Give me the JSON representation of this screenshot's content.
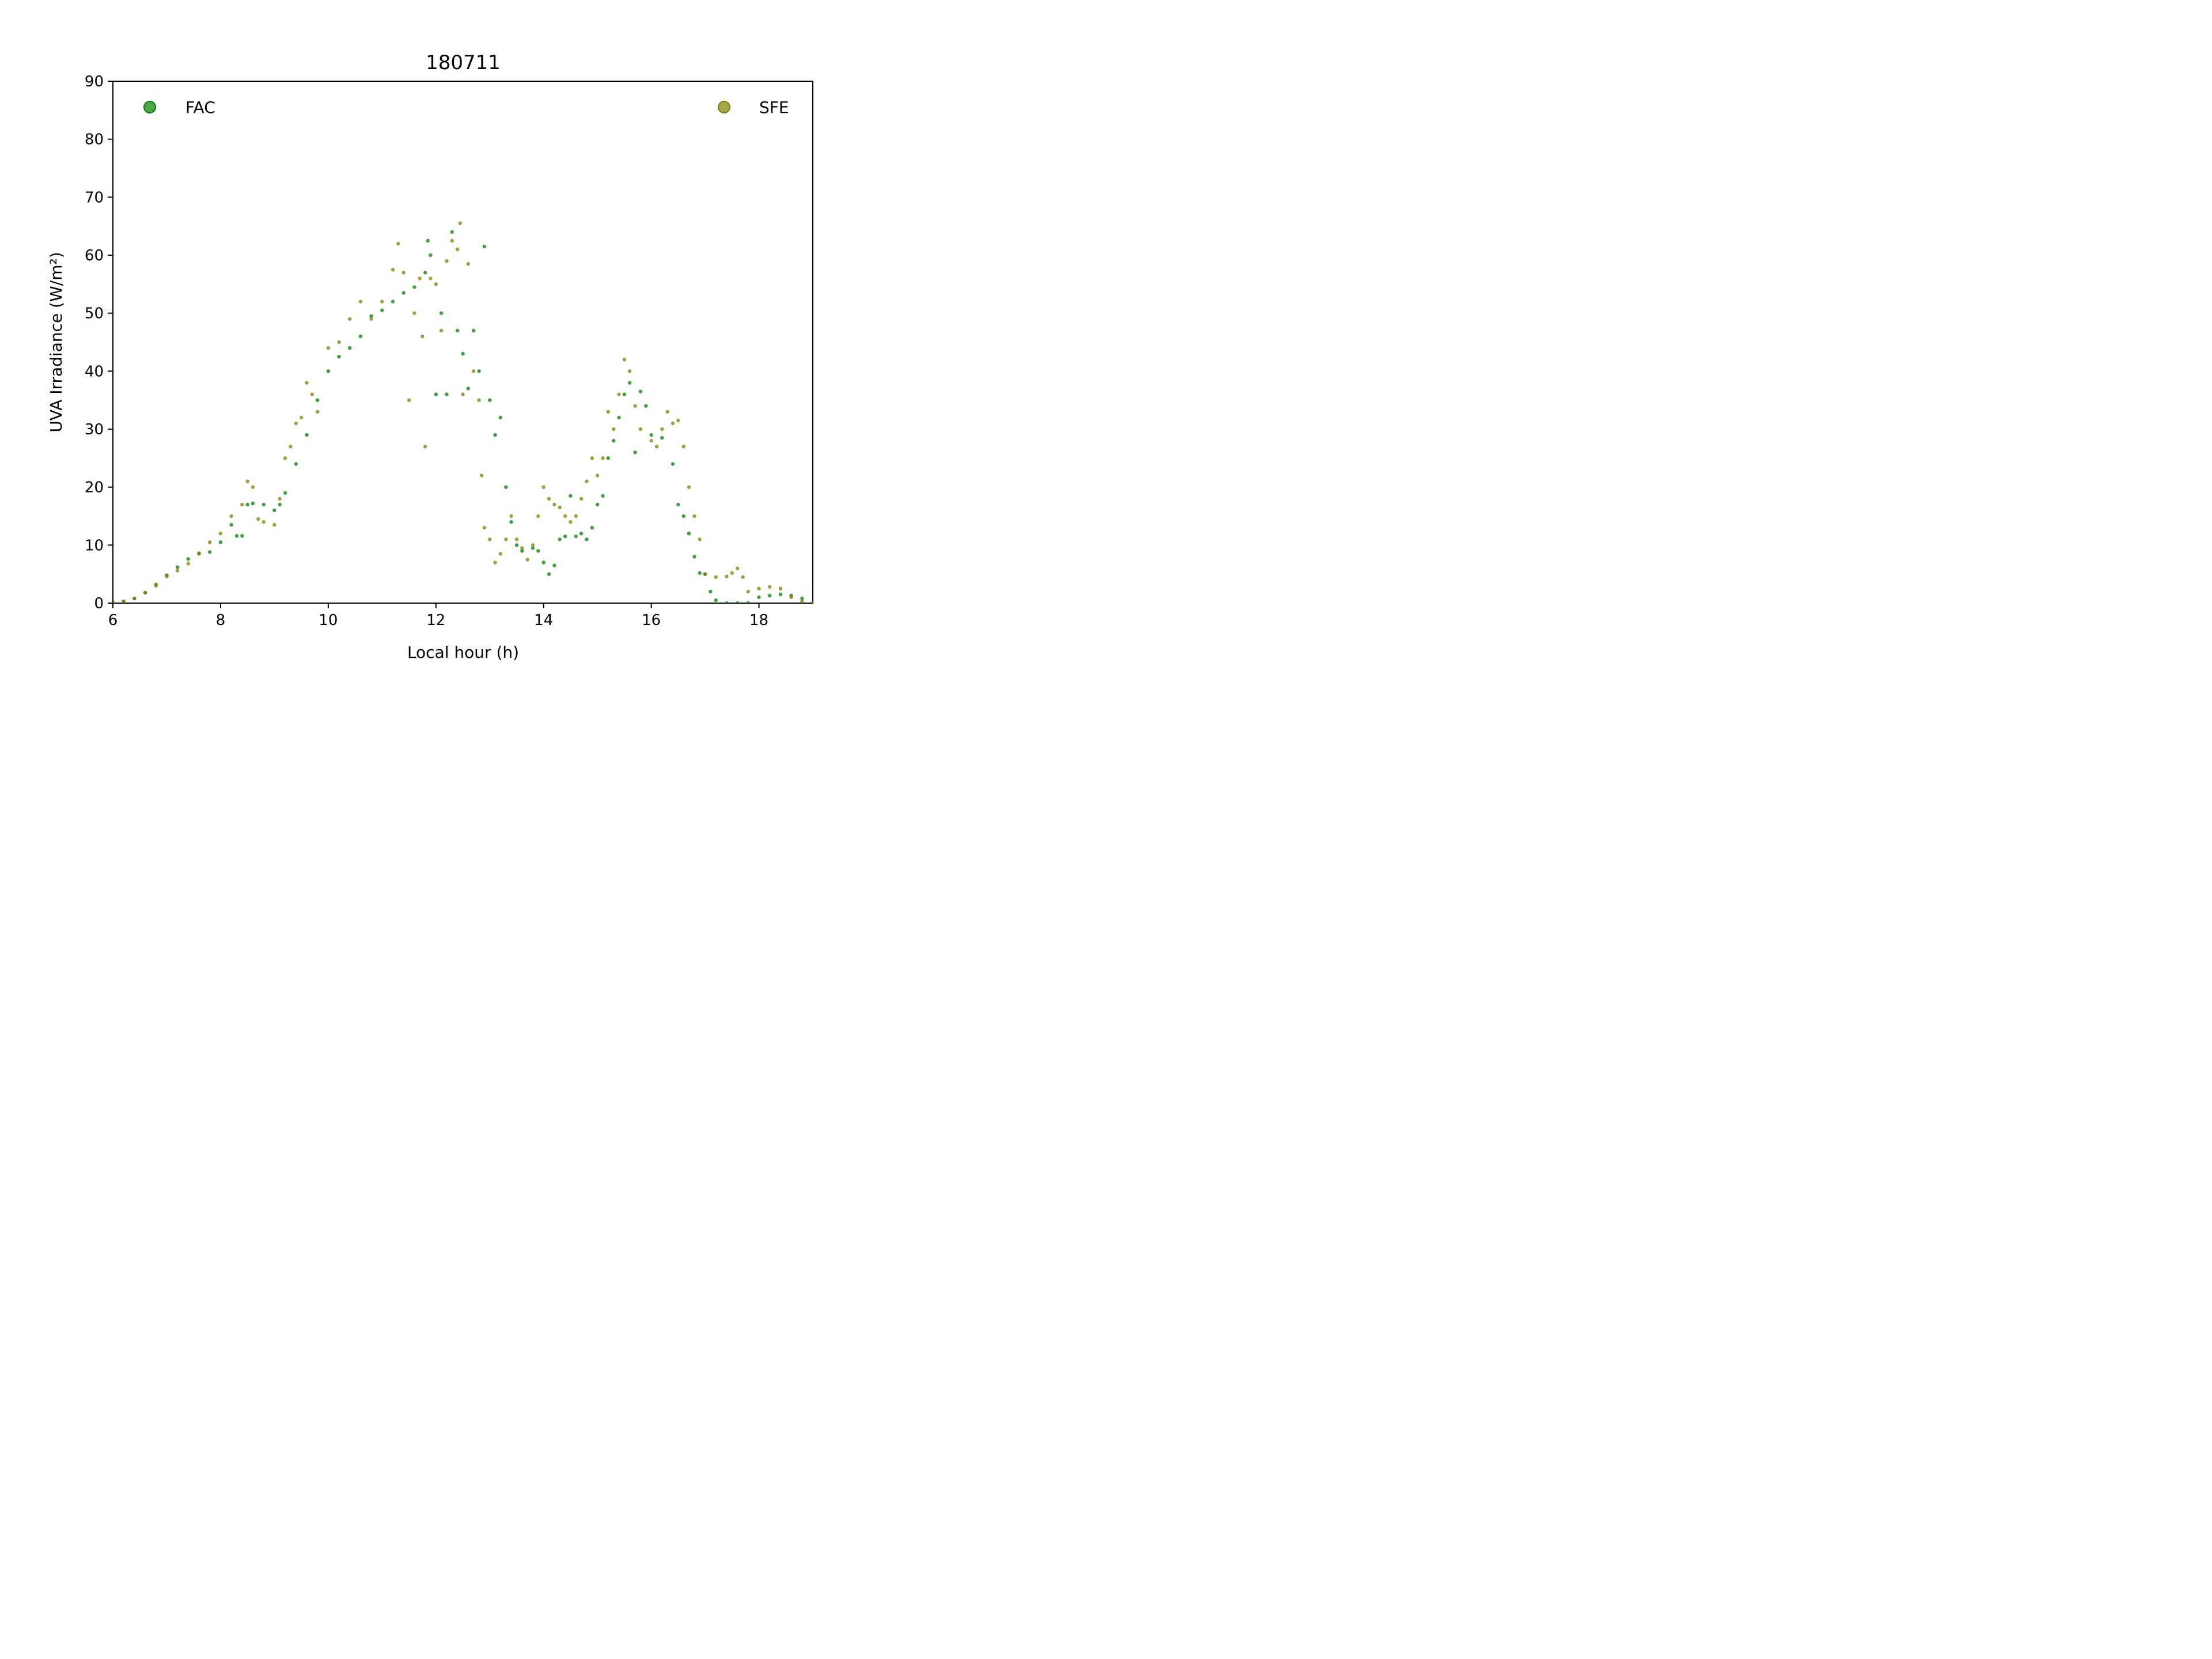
{
  "chart_data": {
    "type": "scatter",
    "title": "180711",
    "xlabel": "Local hour (h)",
    "ylabel": "UVA Irradiance (W/m²)",
    "xlim": [
      6,
      19
    ],
    "ylim": [
      0,
      90
    ],
    "xticks": [
      6,
      8,
      10,
      12,
      14,
      16,
      18
    ],
    "yticks": [
      0,
      10,
      20,
      30,
      40,
      50,
      60,
      70,
      80,
      90
    ],
    "grid": false,
    "legend": "top-left and top-right",
    "series": [
      {
        "name": "FAC",
        "color": "#008000",
        "points": [
          [
            6.0,
            0.1
          ],
          [
            6.2,
            0.3
          ],
          [
            6.4,
            0.8
          ],
          [
            6.6,
            1.8
          ],
          [
            6.8,
            3.2
          ],
          [
            7.0,
            4.8
          ],
          [
            7.2,
            6.2
          ],
          [
            7.4,
            7.6
          ],
          [
            7.6,
            8.6
          ],
          [
            7.8,
            8.8
          ],
          [
            8.0,
            10.5
          ],
          [
            8.2,
            13.5
          ],
          [
            8.3,
            11.6
          ],
          [
            8.4,
            11.6
          ],
          [
            8.5,
            17.0
          ],
          [
            8.6,
            17.2
          ],
          [
            8.8,
            17.0
          ],
          [
            9.0,
            16.0
          ],
          [
            9.1,
            17.0
          ],
          [
            9.2,
            19.0
          ],
          [
            9.4,
            24.0
          ],
          [
            9.6,
            29.0
          ],
          [
            9.8,
            35.0
          ],
          [
            10.0,
            40.0
          ],
          [
            10.2,
            42.5
          ],
          [
            10.4,
            44.0
          ],
          [
            10.6,
            46.0
          ],
          [
            10.8,
            49.5
          ],
          [
            11.0,
            50.5
          ],
          [
            11.2,
            52.0
          ],
          [
            11.4,
            53.5
          ],
          [
            11.6,
            54.5
          ],
          [
            11.8,
            57.0
          ],
          [
            11.85,
            62.5
          ],
          [
            11.9,
            60.0
          ],
          [
            12.0,
            36.0
          ],
          [
            12.1,
            50.0
          ],
          [
            12.2,
            36.0
          ],
          [
            12.3,
            64.0
          ],
          [
            12.4,
            47.0
          ],
          [
            12.5,
            43.0
          ],
          [
            12.6,
            37.0
          ],
          [
            12.7,
            47.0
          ],
          [
            12.8,
            40.0
          ],
          [
            12.9,
            61.5
          ],
          [
            13.0,
            35.0
          ],
          [
            13.1,
            29.0
          ],
          [
            13.2,
            32.0
          ],
          [
            13.3,
            20.0
          ],
          [
            13.4,
            14.0
          ],
          [
            13.5,
            10.0
          ],
          [
            13.6,
            9.0
          ],
          [
            13.8,
            9.5
          ],
          [
            13.9,
            9.0
          ],
          [
            14.0,
            7.0
          ],
          [
            14.1,
            5.0
          ],
          [
            14.2,
            6.5
          ],
          [
            14.3,
            11.0
          ],
          [
            14.4,
            11.5
          ],
          [
            14.5,
            18.5
          ],
          [
            14.6,
            11.5
          ],
          [
            14.7,
            12.0
          ],
          [
            14.8,
            11.0
          ],
          [
            14.9,
            13.0
          ],
          [
            15.0,
            17.0
          ],
          [
            15.1,
            18.5
          ],
          [
            15.2,
            25.0
          ],
          [
            15.3,
            28.0
          ],
          [
            15.4,
            32.0
          ],
          [
            15.5,
            36.0
          ],
          [
            15.6,
            38.0
          ],
          [
            15.7,
            26.0
          ],
          [
            15.8,
            36.5
          ],
          [
            15.9,
            34.0
          ],
          [
            16.0,
            29.0
          ],
          [
            16.2,
            28.5
          ],
          [
            16.4,
            24.0
          ],
          [
            16.5,
            17.0
          ],
          [
            16.6,
            15.0
          ],
          [
            16.7,
            12.0
          ],
          [
            16.8,
            8.0
          ],
          [
            16.9,
            5.2
          ],
          [
            17.0,
            5.0
          ],
          [
            17.1,
            2.0
          ],
          [
            17.2,
            0.5
          ],
          [
            17.4,
            0.0
          ],
          [
            17.6,
            0.0
          ],
          [
            17.8,
            0.0
          ],
          [
            18.0,
            1.0
          ],
          [
            18.2,
            1.3
          ],
          [
            18.4,
            1.5
          ],
          [
            18.6,
            1.3
          ],
          [
            18.8,
            0.8
          ],
          [
            19.0,
            0.0
          ]
        ]
      },
      {
        "name": "SFE",
        "color": "#808000",
        "points": [
          [
            6.0,
            0.0
          ],
          [
            6.2,
            0.3
          ],
          [
            6.4,
            0.8
          ],
          [
            6.6,
            1.8
          ],
          [
            6.8,
            3.0
          ],
          [
            7.0,
            4.6
          ],
          [
            7.2,
            5.6
          ],
          [
            7.4,
            6.8
          ],
          [
            7.6,
            8.5
          ],
          [
            7.8,
            10.5
          ],
          [
            8.0,
            12.0
          ],
          [
            8.2,
            15.0
          ],
          [
            8.4,
            17.0
          ],
          [
            8.5,
            21.0
          ],
          [
            8.6,
            20.0
          ],
          [
            8.7,
            14.5
          ],
          [
            8.8,
            14.0
          ],
          [
            9.0,
            13.5
          ],
          [
            9.1,
            18.0
          ],
          [
            9.2,
            25.0
          ],
          [
            9.3,
            27.0
          ],
          [
            9.4,
            31.0
          ],
          [
            9.5,
            32.0
          ],
          [
            9.6,
            38.0
          ],
          [
            9.7,
            36.0
          ],
          [
            9.8,
            33.0
          ],
          [
            10.0,
            44.0
          ],
          [
            10.2,
            45.0
          ],
          [
            10.4,
            49.0
          ],
          [
            10.6,
            52.0
          ],
          [
            10.8,
            49.0
          ],
          [
            11.0,
            52.0
          ],
          [
            11.2,
            57.5
          ],
          [
            11.3,
            62.0
          ],
          [
            11.4,
            57.0
          ],
          [
            11.5,
            35.0
          ],
          [
            11.6,
            50.0
          ],
          [
            11.7,
            56.0
          ],
          [
            11.75,
            46.0
          ],
          [
            11.8,
            27.0
          ],
          [
            11.9,
            56.0
          ],
          [
            12.0,
            55.0
          ],
          [
            12.1,
            47.0
          ],
          [
            12.2,
            59.0
          ],
          [
            12.3,
            62.5
          ],
          [
            12.4,
            61.0
          ],
          [
            12.45,
            65.5
          ],
          [
            12.5,
            36.0
          ],
          [
            12.6,
            58.5
          ],
          [
            12.7,
            40.0
          ],
          [
            12.8,
            35.0
          ],
          [
            12.85,
            22.0
          ],
          [
            12.9,
            13.0
          ],
          [
            13.0,
            11.0
          ],
          [
            13.1,
            7.0
          ],
          [
            13.2,
            8.5
          ],
          [
            13.3,
            11.0
          ],
          [
            13.4,
            15.0
          ],
          [
            13.5,
            11.0
          ],
          [
            13.6,
            9.5
          ],
          [
            13.7,
            7.5
          ],
          [
            13.8,
            10.0
          ],
          [
            13.9,
            15.0
          ],
          [
            14.0,
            20.0
          ],
          [
            14.1,
            18.0
          ],
          [
            14.2,
            17.0
          ],
          [
            14.3,
            16.5
          ],
          [
            14.4,
            15.0
          ],
          [
            14.5,
            14.0
          ],
          [
            14.6,
            15.0
          ],
          [
            14.7,
            18.0
          ],
          [
            14.8,
            21.0
          ],
          [
            14.9,
            25.0
          ],
          [
            15.0,
            22.0
          ],
          [
            15.1,
            25.0
          ],
          [
            15.2,
            33.0
          ],
          [
            15.3,
            30.0
          ],
          [
            15.4,
            36.0
          ],
          [
            15.5,
            42.0
          ],
          [
            15.6,
            40.0
          ],
          [
            15.7,
            34.0
          ],
          [
            15.8,
            30.0
          ],
          [
            16.0,
            28.0
          ],
          [
            16.1,
            27.0
          ],
          [
            16.2,
            30.0
          ],
          [
            16.3,
            33.0
          ],
          [
            16.4,
            31.0
          ],
          [
            16.5,
            31.5
          ],
          [
            16.6,
            27.0
          ],
          [
            16.7,
            20.0
          ],
          [
            16.8,
            15.0
          ],
          [
            16.9,
            11.0
          ],
          [
            17.0,
            5.0
          ],
          [
            17.2,
            4.5
          ],
          [
            17.4,
            4.6
          ],
          [
            17.5,
            5.2
          ],
          [
            17.6,
            6.0
          ],
          [
            17.7,
            4.5
          ],
          [
            17.8,
            2.0
          ],
          [
            18.0,
            2.5
          ],
          [
            18.2,
            2.8
          ],
          [
            18.4,
            2.5
          ],
          [
            18.6,
            1.0
          ],
          [
            18.8,
            0.3
          ],
          [
            19.0,
            0.0
          ]
        ]
      }
    ]
  }
}
